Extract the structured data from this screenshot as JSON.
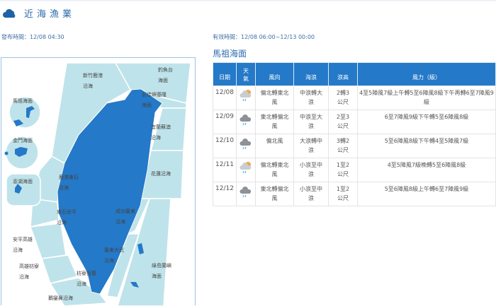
{
  "header": {
    "title": "近海漁業",
    "icon": "cloud-icon",
    "issued": "發布時間：12/08 04:30",
    "valid": "有效時間：12/08 06:00~12/13 00:00"
  },
  "region": "馬祖海面",
  "map": {
    "labels": [
      [
        "新竹鹿港",
        "沿海"
      ],
      [
        "釣魚台",
        "海面"
      ],
      [
        "彭佳嶼基隆",
        "海面"
      ],
      [
        "宜蘭蘇澳",
        "沿海"
      ],
      [
        "花蓮沿海",
        ""
      ],
      [
        "馬祖海面",
        ""
      ],
      [
        "金門海面",
        ""
      ],
      [
        "澎湖海面",
        ""
      ],
      [
        "鹿港東石",
        "沿海"
      ],
      [
        "東石安平",
        "沿海"
      ],
      [
        "成功臺東",
        "沿海"
      ],
      [
        "安平高雄",
        "沿海"
      ],
      [
        "高雄枋寮",
        "沿海"
      ],
      [
        "臺東大武",
        "沿海"
      ],
      [
        "綠島蘭嶼",
        "海面"
      ],
      [
        "枋寮恆春",
        "沿海"
      ],
      [
        "鵝鑾鼻沿海",
        ""
      ]
    ]
  },
  "table": {
    "headers": [
      "日期",
      "天氣",
      "風向",
      "海浪",
      "浪高",
      "風力（級）"
    ],
    "rows": [
      {
        "date": "12/08",
        "weather": "partly-cloudy-rain-icon",
        "dir": "偏北轉東北風",
        "wave": "中浪轉大浪",
        "height": "2轉3公尺",
        "wind": "4至5陣風7級上午轉5至6陣風8級下午再轉6至7陣風9級"
      },
      {
        "date": "12/09",
        "weather": "cloudy-rain-icon",
        "dir": "東北轉偏北風",
        "wave": "中浪至大浪",
        "height": "2至3公尺",
        "wind": "6至7陣風9級下午轉5至6陣風8級"
      },
      {
        "date": "12/10",
        "weather": "cloudy-rain-icon",
        "dir": "偏北風",
        "wave": "大浪轉中浪",
        "height": "3轉2公尺",
        "wind": "5至6陣風8級下午轉4至5陣風7級"
      },
      {
        "date": "12/11",
        "weather": "partly-cloudy-rain-icon",
        "dir": "偏北轉東北風",
        "wave": "小浪至中浪",
        "height": "1至2公尺",
        "wind": "4至5陣風7級晚轉5至6陣風8級"
      },
      {
        "date": "12/12",
        "weather": "cloudy-rain-icon",
        "dir": "東北轉偏北風",
        "wave": "小浪至中浪",
        "height": "1至2公尺",
        "wind": "5至6陣風8級上午轉6至7陣風9級"
      }
    ]
  },
  "colors": {
    "accent": "#2479c8",
    "sea": "#bfe3ea",
    "land": "#2479c8"
  }
}
